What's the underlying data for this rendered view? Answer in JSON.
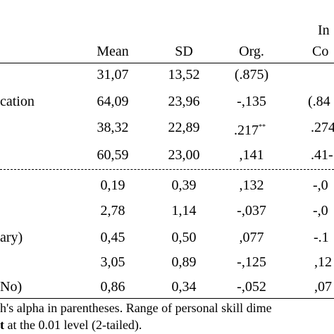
{
  "header": {
    "group_top": "In",
    "mean": "Mean",
    "sd": "SD",
    "org": "Org.",
    "col5": "Co"
  },
  "rows": [
    {
      "label": "",
      "mean": "31,07",
      "sd": "13,52",
      "org": "(.875)",
      "col5": ""
    },
    {
      "label": "cation",
      "mean": "64,09",
      "sd": "23,96",
      "org": "-,135",
      "col5": "(.84"
    },
    {
      "label": "",
      "mean": "38,32",
      "sd": "22,89",
      "org": ".217",
      "org_sup": "**",
      "col5": ".274"
    },
    {
      "label": "",
      "mean": "60,59",
      "sd": "23,00",
      "org": ",141",
      "col5": ".41-"
    },
    {
      "label": "",
      "mean": "0,19",
      "sd": "0,39",
      "org": ",132",
      "col5": "-,0"
    },
    {
      "label": "",
      "mean": "2,78",
      "sd": "1,14",
      "org": "-,037",
      "col5": "-,0"
    },
    {
      "label": "ary)",
      "mean": "0,45",
      "sd": "0,50",
      "org": ",077",
      "col5": "-.1"
    },
    {
      "label": "",
      "mean": "3,05",
      "sd": "0,89",
      "org": "-,125",
      "col5": ",12"
    },
    {
      "label": "No)",
      "mean": "0,86",
      "sd": "0,34",
      "org": "-,052",
      "col5": ",07"
    }
  ],
  "notes": {
    "line1": "h's alpha in parentheses. Range of personal skill dime",
    "line2_bold": "t",
    "line2_rest": " at the 0.01 level (2-tailed)."
  }
}
